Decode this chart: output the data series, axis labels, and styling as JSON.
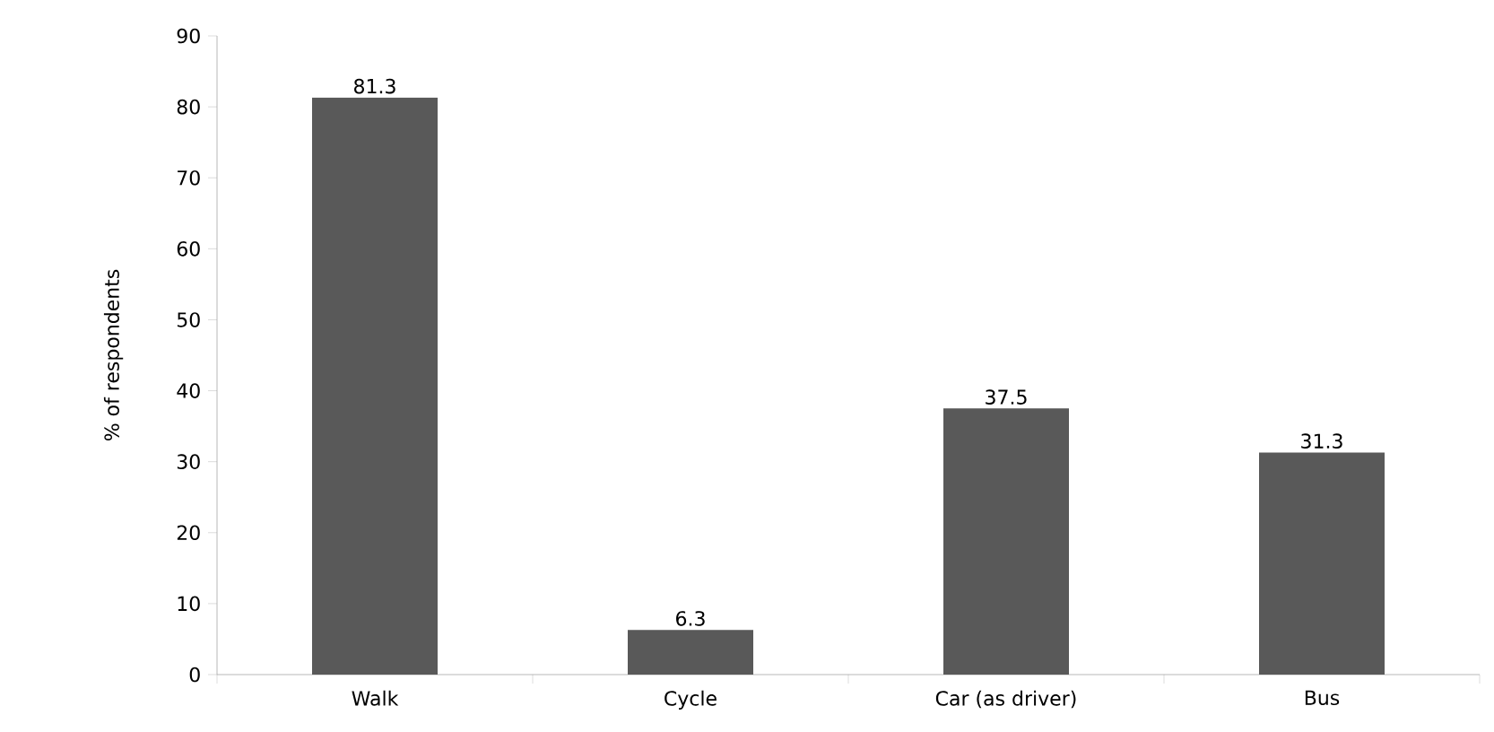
{
  "chart_data": {
    "type": "bar",
    "ylabel": "% of respondents",
    "categories": [
      "Walk",
      "Cycle",
      "Car (as driver)",
      "Bus"
    ],
    "values": [
      81.3,
      6.3,
      37.5,
      31.3
    ],
    "color": "#595959",
    "ylim": [
      0,
      90
    ],
    "yticks": [
      0,
      10,
      20,
      30,
      40,
      50,
      60,
      70,
      80,
      90
    ],
    "data_labels": true
  }
}
